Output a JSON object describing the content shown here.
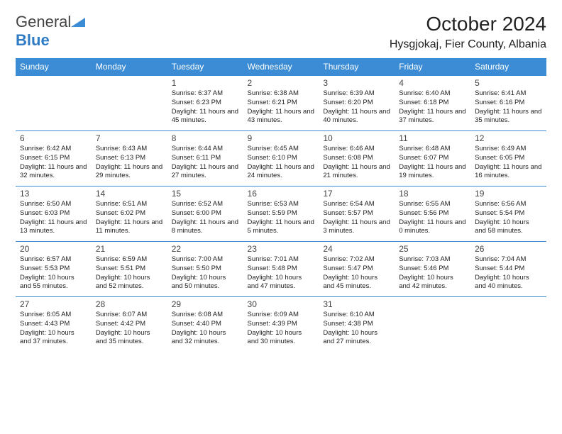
{
  "brand": {
    "text_gray": "General",
    "text_blue": "Blue",
    "icon_color": "#3b8cd4"
  },
  "header": {
    "month_title": "October 2024",
    "location": "Hysgjokaj, Fier County, Albania"
  },
  "colors": {
    "header_bg": "#3b8cd4",
    "header_text": "#ffffff",
    "border": "#3b8cd4",
    "text": "#222222"
  },
  "weekdays": [
    "Sunday",
    "Monday",
    "Tuesday",
    "Wednesday",
    "Thursday",
    "Friday",
    "Saturday"
  ],
  "grid": [
    [
      null,
      null,
      {
        "day": "1",
        "sunrise": "Sunrise: 6:37 AM",
        "sunset": "Sunset: 6:23 PM",
        "daylight": "Daylight: 11 hours and 45 minutes."
      },
      {
        "day": "2",
        "sunrise": "Sunrise: 6:38 AM",
        "sunset": "Sunset: 6:21 PM",
        "daylight": "Daylight: 11 hours and 43 minutes."
      },
      {
        "day": "3",
        "sunrise": "Sunrise: 6:39 AM",
        "sunset": "Sunset: 6:20 PM",
        "daylight": "Daylight: 11 hours and 40 minutes."
      },
      {
        "day": "4",
        "sunrise": "Sunrise: 6:40 AM",
        "sunset": "Sunset: 6:18 PM",
        "daylight": "Daylight: 11 hours and 37 minutes."
      },
      {
        "day": "5",
        "sunrise": "Sunrise: 6:41 AM",
        "sunset": "Sunset: 6:16 PM",
        "daylight": "Daylight: 11 hours and 35 minutes."
      }
    ],
    [
      {
        "day": "6",
        "sunrise": "Sunrise: 6:42 AM",
        "sunset": "Sunset: 6:15 PM",
        "daylight": "Daylight: 11 hours and 32 minutes."
      },
      {
        "day": "7",
        "sunrise": "Sunrise: 6:43 AM",
        "sunset": "Sunset: 6:13 PM",
        "daylight": "Daylight: 11 hours and 29 minutes."
      },
      {
        "day": "8",
        "sunrise": "Sunrise: 6:44 AM",
        "sunset": "Sunset: 6:11 PM",
        "daylight": "Daylight: 11 hours and 27 minutes."
      },
      {
        "day": "9",
        "sunrise": "Sunrise: 6:45 AM",
        "sunset": "Sunset: 6:10 PM",
        "daylight": "Daylight: 11 hours and 24 minutes."
      },
      {
        "day": "10",
        "sunrise": "Sunrise: 6:46 AM",
        "sunset": "Sunset: 6:08 PM",
        "daylight": "Daylight: 11 hours and 21 minutes."
      },
      {
        "day": "11",
        "sunrise": "Sunrise: 6:48 AM",
        "sunset": "Sunset: 6:07 PM",
        "daylight": "Daylight: 11 hours and 19 minutes."
      },
      {
        "day": "12",
        "sunrise": "Sunrise: 6:49 AM",
        "sunset": "Sunset: 6:05 PM",
        "daylight": "Daylight: 11 hours and 16 minutes."
      }
    ],
    [
      {
        "day": "13",
        "sunrise": "Sunrise: 6:50 AM",
        "sunset": "Sunset: 6:03 PM",
        "daylight": "Daylight: 11 hours and 13 minutes."
      },
      {
        "day": "14",
        "sunrise": "Sunrise: 6:51 AM",
        "sunset": "Sunset: 6:02 PM",
        "daylight": "Daylight: 11 hours and 11 minutes."
      },
      {
        "day": "15",
        "sunrise": "Sunrise: 6:52 AM",
        "sunset": "Sunset: 6:00 PM",
        "daylight": "Daylight: 11 hours and 8 minutes."
      },
      {
        "day": "16",
        "sunrise": "Sunrise: 6:53 AM",
        "sunset": "Sunset: 5:59 PM",
        "daylight": "Daylight: 11 hours and 5 minutes."
      },
      {
        "day": "17",
        "sunrise": "Sunrise: 6:54 AM",
        "sunset": "Sunset: 5:57 PM",
        "daylight": "Daylight: 11 hours and 3 minutes."
      },
      {
        "day": "18",
        "sunrise": "Sunrise: 6:55 AM",
        "sunset": "Sunset: 5:56 PM",
        "daylight": "Daylight: 11 hours and 0 minutes."
      },
      {
        "day": "19",
        "sunrise": "Sunrise: 6:56 AM",
        "sunset": "Sunset: 5:54 PM",
        "daylight": "Daylight: 10 hours and 58 minutes."
      }
    ],
    [
      {
        "day": "20",
        "sunrise": "Sunrise: 6:57 AM",
        "sunset": "Sunset: 5:53 PM",
        "daylight": "Daylight: 10 hours and 55 minutes."
      },
      {
        "day": "21",
        "sunrise": "Sunrise: 6:59 AM",
        "sunset": "Sunset: 5:51 PM",
        "daylight": "Daylight: 10 hours and 52 minutes."
      },
      {
        "day": "22",
        "sunrise": "Sunrise: 7:00 AM",
        "sunset": "Sunset: 5:50 PM",
        "daylight": "Daylight: 10 hours and 50 minutes."
      },
      {
        "day": "23",
        "sunrise": "Sunrise: 7:01 AM",
        "sunset": "Sunset: 5:48 PM",
        "daylight": "Daylight: 10 hours and 47 minutes."
      },
      {
        "day": "24",
        "sunrise": "Sunrise: 7:02 AM",
        "sunset": "Sunset: 5:47 PM",
        "daylight": "Daylight: 10 hours and 45 minutes."
      },
      {
        "day": "25",
        "sunrise": "Sunrise: 7:03 AM",
        "sunset": "Sunset: 5:46 PM",
        "daylight": "Daylight: 10 hours and 42 minutes."
      },
      {
        "day": "26",
        "sunrise": "Sunrise: 7:04 AM",
        "sunset": "Sunset: 5:44 PM",
        "daylight": "Daylight: 10 hours and 40 minutes."
      }
    ],
    [
      {
        "day": "27",
        "sunrise": "Sunrise: 6:05 AM",
        "sunset": "Sunset: 4:43 PM",
        "daylight": "Daylight: 10 hours and 37 minutes."
      },
      {
        "day": "28",
        "sunrise": "Sunrise: 6:07 AM",
        "sunset": "Sunset: 4:42 PM",
        "daylight": "Daylight: 10 hours and 35 minutes."
      },
      {
        "day": "29",
        "sunrise": "Sunrise: 6:08 AM",
        "sunset": "Sunset: 4:40 PM",
        "daylight": "Daylight: 10 hours and 32 minutes."
      },
      {
        "day": "30",
        "sunrise": "Sunrise: 6:09 AM",
        "sunset": "Sunset: 4:39 PM",
        "daylight": "Daylight: 10 hours and 30 minutes."
      },
      {
        "day": "31",
        "sunrise": "Sunrise: 6:10 AM",
        "sunset": "Sunset: 4:38 PM",
        "daylight": "Daylight: 10 hours and 27 minutes."
      },
      null,
      null
    ]
  ]
}
